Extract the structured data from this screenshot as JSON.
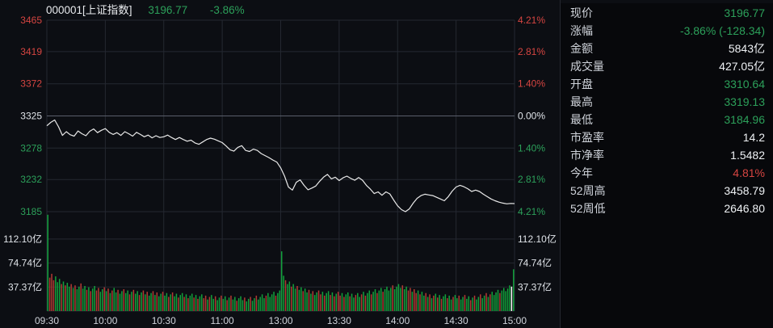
{
  "header": {
    "code_label": "000001[上证指数]",
    "price": "3196.77",
    "change_pct": "-3.86%"
  },
  "panel": {
    "rows": [
      {
        "label": "现价",
        "value": "3196.77",
        "color": "down"
      },
      {
        "label": "涨幅",
        "value": "-3.86% (-128.34)",
        "color": "down"
      },
      {
        "label": "金额",
        "value": "5843亿",
        "color": "flat"
      },
      {
        "label": "成交量",
        "value": "427.05亿",
        "color": "flat"
      },
      {
        "label": "开盘",
        "value": "3310.64",
        "color": "down"
      },
      {
        "label": "最高",
        "value": "3319.13",
        "color": "down"
      },
      {
        "label": "最低",
        "value": "3184.96",
        "color": "down"
      },
      {
        "label": "市盈率",
        "value": "14.2",
        "color": "flat"
      },
      {
        "label": "市净率",
        "value": "1.5482",
        "color": "flat"
      },
      {
        "label": "今年",
        "value": "4.81%",
        "color": "up"
      },
      {
        "label": "52周高",
        "value": "3458.79",
        "color": "flat"
      },
      {
        "label": "52周低",
        "value": "2646.80",
        "color": "flat"
      }
    ]
  },
  "chart_data": {
    "type": "line",
    "title": "000001 上证指数 分时图",
    "prev_close": 3325.11,
    "open": 3310.64,
    "high": 3319.13,
    "low": 3184.96,
    "close": 3196.77,
    "price_axis": {
      "max": 3465,
      "min": 3185,
      "labels": [
        {
          "text": "3465",
          "value": 3465,
          "color": "up"
        },
        {
          "text": "3419",
          "value": 3419,
          "color": "up"
        },
        {
          "text": "3372",
          "value": 3372,
          "color": "up"
        },
        {
          "text": "3325",
          "value": 3325,
          "color": "flat",
          "zero": true
        },
        {
          "text": "3278",
          "value": 3278,
          "color": "down"
        },
        {
          "text": "3232",
          "value": 3232,
          "color": "down"
        },
        {
          "text": "3185",
          "value": 3185,
          "color": "down"
        }
      ]
    },
    "pct_axis": {
      "labels": [
        {
          "text": "4.21%",
          "color": "up"
        },
        {
          "text": "2.81%",
          "color": "up"
        },
        {
          "text": "1.40%",
          "color": "up"
        },
        {
          "text": "0.00%",
          "color": "flat"
        },
        {
          "text": "1.40%",
          "color": "down"
        },
        {
          "text": "2.81%",
          "color": "down"
        },
        {
          "text": "4.21%",
          "color": "down"
        }
      ]
    },
    "volume_axis": {
      "unit": "亿",
      "ticks": [
        {
          "text": "112.10亿",
          "value": 112.1
        },
        {
          "text": "74.74亿",
          "value": 74.74
        },
        {
          "text": "37.37亿",
          "value": 37.37
        }
      ]
    },
    "x_axis": {
      "labels": [
        "09:30",
        "10:00",
        "10:30",
        "11:00",
        "13:00",
        "13:30",
        "14:00",
        "14:30",
        "15:00"
      ],
      "total_minutes": 240
    },
    "price": {
      "minutes_per_point": 2,
      "values": [
        3310.6,
        3315.5,
        3319.1,
        3309,
        3296.5,
        3302,
        3297.5,
        3295.5,
        3303,
        3299,
        3296,
        3302.5,
        3306,
        3300.5,
        3304,
        3306.5,
        3301,
        3298,
        3300.5,
        3296.5,
        3302,
        3299,
        3295.5,
        3301,
        3298,
        3294.5,
        3297,
        3293,
        3296,
        3293.5,
        3294.5,
        3297,
        3293.5,
        3290.5,
        3293.5,
        3290.5,
        3288,
        3289.5,
        3285.5,
        3283.5,
        3287,
        3290.5,
        3292.5,
        3291,
        3288.5,
        3286,
        3281,
        3275.5,
        3273.5,
        3279,
        3281.5,
        3274.5,
        3273,
        3276.5,
        3274.5,
        3270,
        3267,
        3264,
        3260.5,
        3257.5,
        3249,
        3237,
        3221,
        3216.5,
        3228,
        3231.5,
        3223.5,
        3217,
        3219.5,
        3222.5,
        3229.5,
        3235.5,
        3239.5,
        3233,
        3235.5,
        3230.5,
        3234.5,
        3237,
        3233.5,
        3231,
        3235,
        3231,
        3223.5,
        3218,
        3211.5,
        3214,
        3209,
        3214,
        3211,
        3202,
        3193.5,
        3188,
        3185,
        3189,
        3197.5,
        3204.5,
        3208.5,
        3210.5,
        3209.5,
        3208.5,
        3206,
        3203.5,
        3201,
        3207,
        3215,
        3221,
        3223.5,
        3221.5,
        3218.5,
        3214.5,
        3216.5,
        3214.5,
        3210.5,
        3207,
        3203.5,
        3201,
        3199,
        3197.5,
        3196.5,
        3197,
        3196.8
      ]
    },
    "volume": {
      "unit": "亿",
      "values": [
        150,
        52,
        58,
        48,
        54,
        45,
        50,
        42,
        46,
        40,
        44,
        38,
        42,
        36,
        40,
        34,
        38,
        43,
        35,
        39,
        33,
        37,
        31,
        35,
        39,
        32,
        36,
        30,
        34,
        37,
        31,
        35,
        28,
        32,
        36,
        29,
        33,
        27,
        31,
        34,
        28,
        32,
        26,
        30,
        33,
        27,
        31,
        25,
        29,
        32,
        26,
        30,
        24,
        28,
        31,
        25,
        29,
        23,
        27,
        30,
        24,
        28,
        22,
        26,
        29,
        23,
        27,
        21,
        25,
        28,
        22,
        26,
        20,
        24,
        27,
        21,
        25,
        19,
        23,
        26,
        20,
        24,
        18,
        22,
        25,
        19,
        23,
        17,
        21,
        24,
        19,
        23,
        17,
        21,
        24,
        18,
        22,
        16,
        20,
        23,
        17,
        21,
        15,
        19,
        22,
        16,
        20,
        24,
        18,
        22,
        26,
        20,
        24,
        28,
        22,
        26,
        30,
        24,
        28,
        32,
        93,
        55,
        48,
        42,
        46,
        38,
        42,
        35,
        39,
        33,
        37,
        31,
        35,
        29,
        33,
        27,
        31,
        25,
        29,
        32,
        26,
        30,
        24,
        28,
        31,
        25,
        29,
        23,
        27,
        30,
        24,
        28,
        22,
        26,
        29,
        23,
        27,
        21,
        25,
        28,
        22,
        26,
        30,
        24,
        28,
        32,
        26,
        30,
        34,
        28,
        32,
        36,
        30,
        34,
        38,
        32,
        36,
        40,
        34,
        38,
        42,
        36,
        40,
        34,
        38,
        32,
        36,
        30,
        34,
        28,
        32,
        26,
        30,
        24,
        28,
        22,
        26,
        20,
        24,
        27,
        21,
        25,
        19,
        23,
        26,
        20,
        24,
        18,
        22,
        25,
        20,
        24,
        18,
        22,
        25,
        19,
        23,
        17,
        21,
        24,
        18,
        22,
        26,
        20,
        24,
        28,
        22,
        26,
        30,
        25,
        29,
        33,
        28,
        32,
        36,
        31,
        35,
        40,
        38,
        65
      ],
      "colors": "grrrgggrgrggrgrggrggrgrggrrggrgrgrggrggrggrgrggrgrgrggrgrggrggrgrggrggrgrggrgrggrrgrggrggrggrgrggrgggrggrggrggggrggggrggggrggrggrggrggrgrggrrgrggrgrgrrgrggrggrggrgrggrggrggrggggrggggrggrrgrrgrggrgrgrgrgrggrggrggrggrggrgrggrggrgrggggrgggggwg"
    },
    "colors": {
      "up": "#d64541",
      "down": "#2ca05a",
      "flat": "#dfe3e8",
      "bar_up": "#b23a33",
      "bar_down": "#12a13b",
      "bar_current": "#ffffff",
      "line": "#e9e9e9",
      "grid": "#242831",
      "grid_zero": "#5a5f6a",
      "bg": "#0c0e13"
    }
  }
}
